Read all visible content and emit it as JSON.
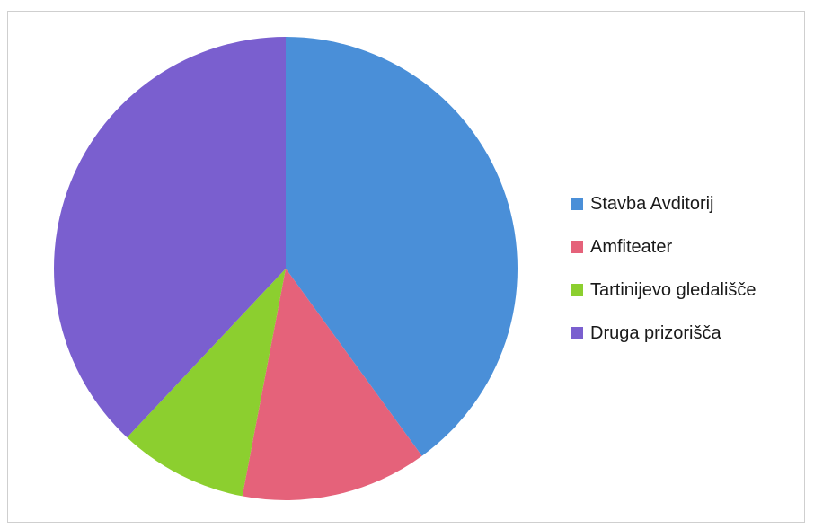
{
  "chart_data": {
    "type": "pie",
    "title": "",
    "legend_position": "right",
    "categories": [
      "Stavba Avditorij",
      "Amfiteater",
      "Tartinijevo gledališče",
      "Druga prizorišča"
    ],
    "values": [
      40,
      13,
      9,
      38
    ],
    "colors": [
      "#4a8fd8",
      "#e5627a",
      "#8ccf2f",
      "#7a5fcf"
    ]
  }
}
